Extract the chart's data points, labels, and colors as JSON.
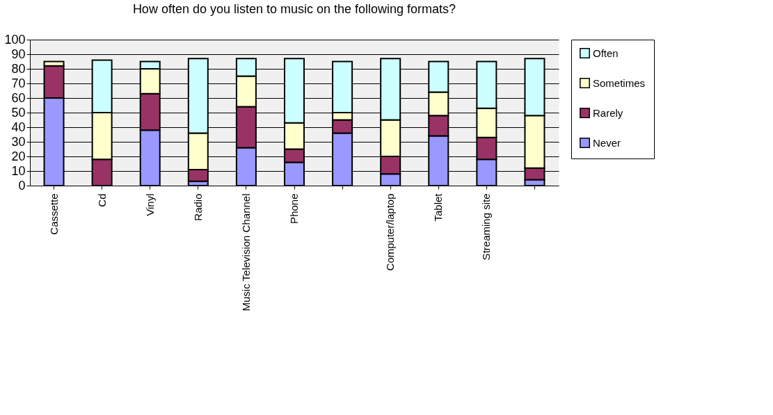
{
  "chart_data": {
    "type": "bar",
    "stacked": true,
    "title": "How often do you listen to music on the following formats?",
    "categories": [
      "Cassette",
      "Cd",
      "Vinyl",
      "Radio",
      "Music Television Channel",
      "Phone",
      null,
      "Computer/laptop",
      "Tablet",
      "Streaming site",
      null
    ],
    "series": [
      {
        "name": "Never",
        "color": "#9999ff",
        "values": [
          60,
          null,
          38,
          3,
          26,
          16,
          36,
          8,
          34,
          18,
          4
        ]
      },
      {
        "name": "Rarely",
        "color": "#993366",
        "values": [
          22,
          18,
          25,
          8,
          28,
          9,
          9,
          12,
          14,
          15,
          8
        ]
      },
      {
        "name": "Sometimes",
        "color": "#ffffcc",
        "values": [
          3,
          32,
          17,
          25,
          21,
          18,
          5,
          25,
          16,
          20,
          36
        ]
      },
      {
        "name": "Often",
        "color": "#ccffff",
        "values": [
          null,
          36,
          5,
          51,
          12,
          44,
          35,
          42,
          21,
          32,
          39
        ]
      }
    ],
    "ylim": [
      0,
      100
    ],
    "yticks": [
      0,
      10,
      20,
      30,
      40,
      50,
      60,
      70,
      80,
      90,
      100
    ],
    "grid": "y",
    "legend": "right"
  }
}
